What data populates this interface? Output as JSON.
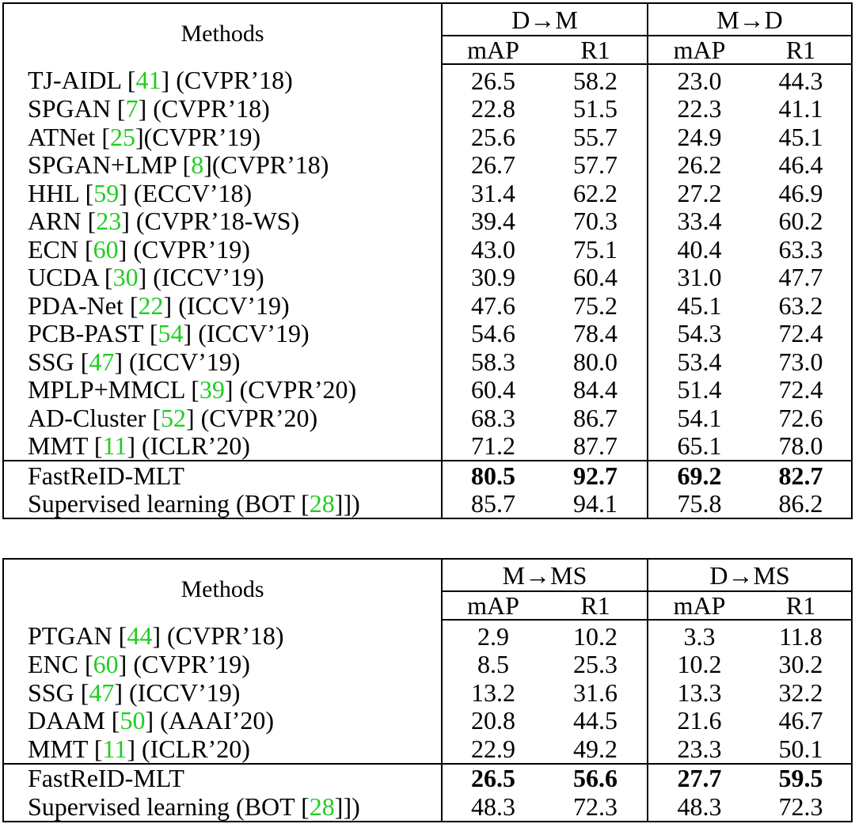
{
  "colors": {
    "reference_link": "#22cc22",
    "text": "#000000",
    "rules": "#000000"
  },
  "tables": [
    {
      "methods_header": "Methods",
      "groups": [
        "D→M",
        "M→D"
      ],
      "metrics": [
        "mAP",
        "R1",
        "mAP",
        "R1"
      ],
      "rows": [
        {
          "name": "TJ-AIDL ",
          "ref": "41",
          "venue": " (CVPR’18)",
          "values": [
            "26.5",
            "58.2",
            "23.0",
            "44.3"
          ]
        },
        {
          "name": "SPGAN ",
          "ref": "7",
          "venue": " (CVPR’18)",
          "values": [
            "22.8",
            "51.5",
            "22.3",
            "41.1"
          ]
        },
        {
          "name": "ATNet ",
          "ref": "25",
          "venue": "(CVPR’19)",
          "values": [
            "25.6",
            "55.7",
            "24.9",
            "45.1"
          ]
        },
        {
          "name": "SPGAN+LMP ",
          "ref": "8",
          "venue": "(CVPR’18)",
          "values": [
            "26.7",
            "57.7",
            "26.2",
            "46.4"
          ]
        },
        {
          "name": "HHL ",
          "ref": "59",
          "venue": " (ECCV’18)",
          "values": [
            "31.4",
            "62.2",
            "27.2",
            "46.9"
          ]
        },
        {
          "name": "ARN ",
          "ref": "23",
          "venue": " (CVPR’18-WS)",
          "values": [
            "39.4",
            "70.3",
            "33.4",
            "60.2"
          ]
        },
        {
          "name": "ECN ",
          "ref": "60",
          "venue": " (CVPR’19)",
          "values": [
            "43.0",
            "75.1",
            "40.4",
            "63.3"
          ]
        },
        {
          "name": "UCDA ",
          "ref": "30",
          "venue": " (ICCV’19)",
          "values": [
            "30.9",
            "60.4",
            "31.0",
            "47.7"
          ]
        },
        {
          "name": "PDA-Net ",
          "ref": "22",
          "venue": " (ICCV’19)",
          "values": [
            "47.6",
            "75.2",
            "45.1",
            "63.2"
          ]
        },
        {
          "name": "PCB-PAST ",
          "ref": "54",
          "venue": " (ICCV’19)",
          "values": [
            "54.6",
            "78.4",
            "54.3",
            "72.4"
          ]
        },
        {
          "name": "SSG ",
          "ref": "47",
          "venue": " (ICCV’19)",
          "values": [
            "58.3",
            "80.0",
            "53.4",
            "73.0"
          ]
        },
        {
          "name": "MPLP+MMCL ",
          "ref": "39",
          "venue": " (CVPR’20)",
          "values": [
            "60.4",
            "84.4",
            "51.4",
            "72.4"
          ]
        },
        {
          "name": "AD-Cluster ",
          "ref": "52",
          "venue": " (CVPR’20)",
          "values": [
            "68.3",
            "86.7",
            "54.1",
            "72.6"
          ]
        },
        {
          "name": "MMT ",
          "ref": "11",
          "venue": " (ICLR’20)",
          "values": [
            "71.2",
            "87.7",
            "65.1",
            "78.0"
          ]
        },
        {
          "name": "FastReID-MLT",
          "ref": "",
          "venue": "",
          "bold": true,
          "values": [
            "80.5",
            "92.7",
            "69.2",
            "82.7"
          ]
        },
        {
          "name": "Supervised learning (BOT ",
          "ref": "28",
          "venue": "])",
          "values": [
            "85.7",
            "94.1",
            "75.8",
            "86.2"
          ]
        }
      ]
    },
    {
      "methods_header": "Methods",
      "groups": [
        "M→MS",
        "D→MS"
      ],
      "metrics": [
        "mAP",
        "R1",
        "mAP",
        "R1"
      ],
      "rows": [
        {
          "name": "PTGAN ",
          "ref": "44",
          "venue": " (CVPR’18)",
          "values": [
            "2.9",
            "10.2",
            "3.3",
            "11.8"
          ]
        },
        {
          "name": "ENC ",
          "ref": "60",
          "venue": " (CVPR’19)",
          "values": [
            "8.5",
            "25.3",
            "10.2",
            "30.2"
          ]
        },
        {
          "name": "SSG ",
          "ref": "47",
          "venue": " (ICCV’19)",
          "values": [
            "13.2",
            "31.6",
            "13.3",
            "32.2"
          ]
        },
        {
          "name": "DAAM ",
          "ref": "50",
          "venue": " (AAAI’20)",
          "values": [
            "20.8",
            "44.5",
            "21.6",
            "46.7"
          ]
        },
        {
          "name": "MMT ",
          "ref": "11",
          "venue": " (ICLR’20)",
          "values": [
            "22.9",
            "49.2",
            "23.3",
            "50.1"
          ]
        },
        {
          "name": "FastReID-MLT",
          "ref": "",
          "venue": "",
          "bold": true,
          "values": [
            "26.5",
            "56.6",
            "27.7",
            "59.5"
          ]
        },
        {
          "name": "Supervised learning (BOT ",
          "ref": "28",
          "venue": "])",
          "values": [
            "48.3",
            "72.3",
            "48.3",
            "72.3"
          ]
        }
      ]
    }
  ]
}
